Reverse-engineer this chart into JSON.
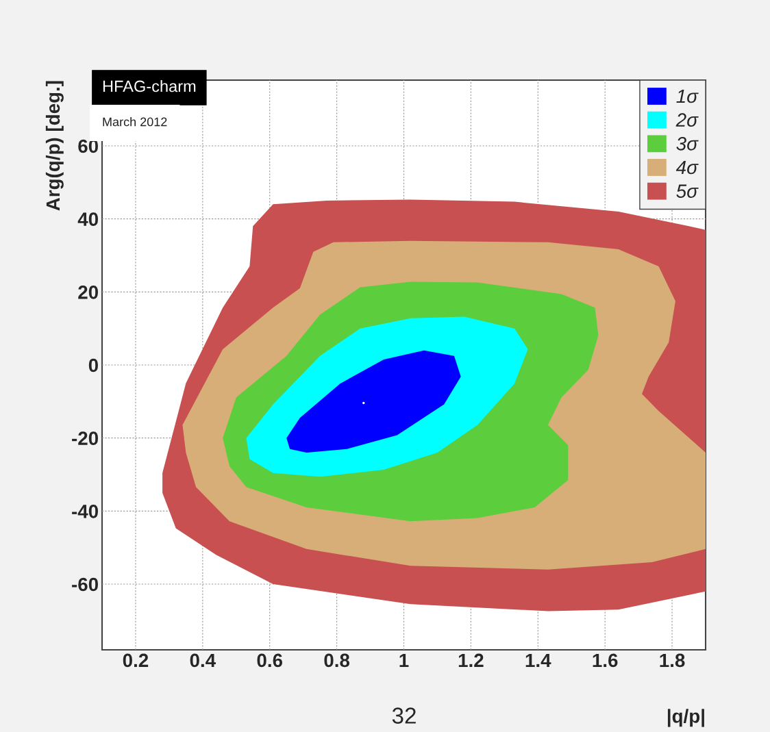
{
  "chart_data": {
    "type": "area",
    "xlabel": "|q/p|",
    "ylabel": "Arg(q/p) [deg.]",
    "annotations": [
      "HFAG-charm",
      "March 2012",
      "32"
    ],
    "xlim": [
      0.1,
      1.9
    ],
    "xticks": [
      0.2,
      0.4,
      0.6,
      0.8,
      1,
      1.2,
      1.4,
      1.6,
      1.8
    ],
    "ylim": [
      -78,
      78
    ],
    "yticks": [
      -60,
      -40,
      -20,
      0,
      20,
      40,
      60
    ],
    "grid": true,
    "legend": "top right",
    "series": [
      {
        "name": "1σ",
        "color": "#0000ff",
        "x": [
          0.65,
          0.69,
          0.81,
          0.94,
          1.06,
          1.15,
          1.17,
          1.12,
          0.98,
          0.83,
          0.71,
          0.66
        ],
        "values": [
          -20,
          -14.5,
          -5.1,
          1.5,
          4,
          2.5,
          -3.2,
          -10.8,
          -19.2,
          -23,
          -24,
          -23
        ]
      },
      {
        "name": "2σ",
        "color": "#00ffff",
        "x": [
          0.53,
          0.61,
          0.75,
          0.87,
          1.02,
          1.18,
          1.33,
          1.37,
          1.33,
          1.22,
          1.1,
          0.94,
          0.75,
          0.61,
          0.54
        ],
        "values": [
          -20,
          -10.8,
          2.5,
          10,
          12.8,
          13.2,
          10,
          4.3,
          -5.1,
          -16.4,
          -24,
          -28.7,
          -30.6,
          -29.6,
          -25.8
        ]
      },
      {
        "name": "3σ",
        "color": "#5ccd3c",
        "x": [
          0.46,
          0.5,
          0.65,
          0.75,
          0.87,
          1.02,
          1.22,
          1.47,
          1.57,
          1.58,
          1.55,
          1.47,
          1.43,
          1.49,
          1.49,
          1.39,
          1.22,
          1.02,
          0.71,
          0.53,
          0.48
        ],
        "values": [
          -20,
          -8.9,
          2.5,
          13.8,
          21.3,
          22.8,
          22.6,
          19.4,
          15.7,
          8.1,
          -1.3,
          -8.9,
          -16.4,
          -22,
          -31.5,
          -39,
          -41.9,
          -42.8,
          -39,
          -33.4,
          -27.7
        ]
      },
      {
        "name": "4σ",
        "color": "#d8ae78",
        "x": [
          0.34,
          0.46,
          0.61,
          0.69,
          0.73,
          0.79,
          1.02,
          1.43,
          1.64,
          1.76,
          1.81,
          1.79,
          1.73,
          1.71,
          1.76,
          1.9,
          1.9,
          1.74,
          1.43,
          1.02,
          0.71,
          0.48,
          0.38,
          0.35
        ],
        "values": [
          -16.4,
          4.3,
          15.7,
          21,
          31,
          33.6,
          34,
          33.6,
          31.7,
          27,
          17.5,
          6.2,
          -3.2,
          -7.9,
          -12.6,
          -24,
          -50.4,
          -54,
          -56,
          -55,
          -50.4,
          -42.8,
          -33.4,
          -24
        ]
      },
      {
        "name": "5σ",
        "color": "#c85050",
        "x": [
          0.28,
          0.35,
          0.46,
          0.54,
          0.55,
          0.61,
          0.77,
          1.02,
          1.33,
          1.64,
          1.85,
          1.9,
          1.9,
          1.64,
          1.43,
          1.02,
          0.61,
          0.44,
          0.32,
          0.28
        ],
        "values": [
          -29.6,
          -5,
          15.7,
          27,
          38,
          44,
          45,
          45.3,
          44.7,
          42,
          38,
          37,
          -62,
          -67,
          -67.4,
          -65.5,
          -60,
          -52,
          -44.7,
          -35
        ]
      },
      {
        "type": "scatter",
        "color": "#ffffff",
        "x": [
          0.88
        ],
        "values": [
          -10.4
        ]
      }
    ]
  }
}
